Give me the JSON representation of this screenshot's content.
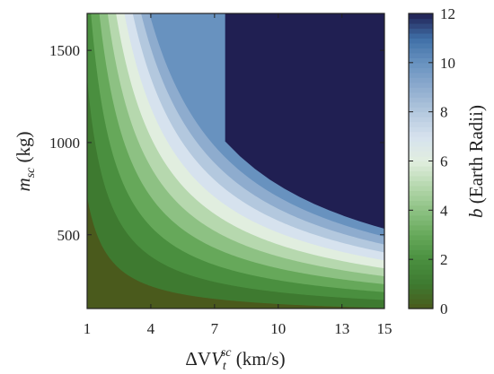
{
  "chart_data": {
    "type": "contour",
    "x": {
      "label_prefix": "ΔV",
      "label_sub": "t",
      "label_sup": "sc",
      "label_unit": " (km/s)",
      "range": [
        1,
        15
      ],
      "ticks": [
        1,
        4,
        7,
        10,
        13,
        15
      ]
    },
    "y": {
      "label_main": "m",
      "label_sub": "sc",
      "label_unit": " (kg)",
      "range": [
        100,
        1700
      ],
      "ticks": [
        500,
        1000,
        1500
      ]
    },
    "z": {
      "label_italic": "b",
      "label_rest": " (Earth Radii)",
      "range": [
        0,
        12
      ],
      "ticks": [
        0,
        2,
        4,
        6,
        8,
        10,
        12
      ],
      "levels": [
        0,
        1,
        2,
        3,
        4,
        5,
        6,
        7,
        8,
        9,
        10,
        11,
        12
      ],
      "saturation_level": 11,
      "model": "b = k * dV * (m - 60), k = 1.55e-3"
    },
    "colormap": [
      "#4a5a1c",
      "#3e7a30",
      "#4a8f3f",
      "#66a85a",
      "#8dc183",
      "#b6d8ae",
      "#e1eedf",
      "#d6e2ee",
      "#b3c8de",
      "#8eacce",
      "#6892bf",
      "#3f6fa7",
      "#1f3c79",
      "#201f52"
    ]
  }
}
